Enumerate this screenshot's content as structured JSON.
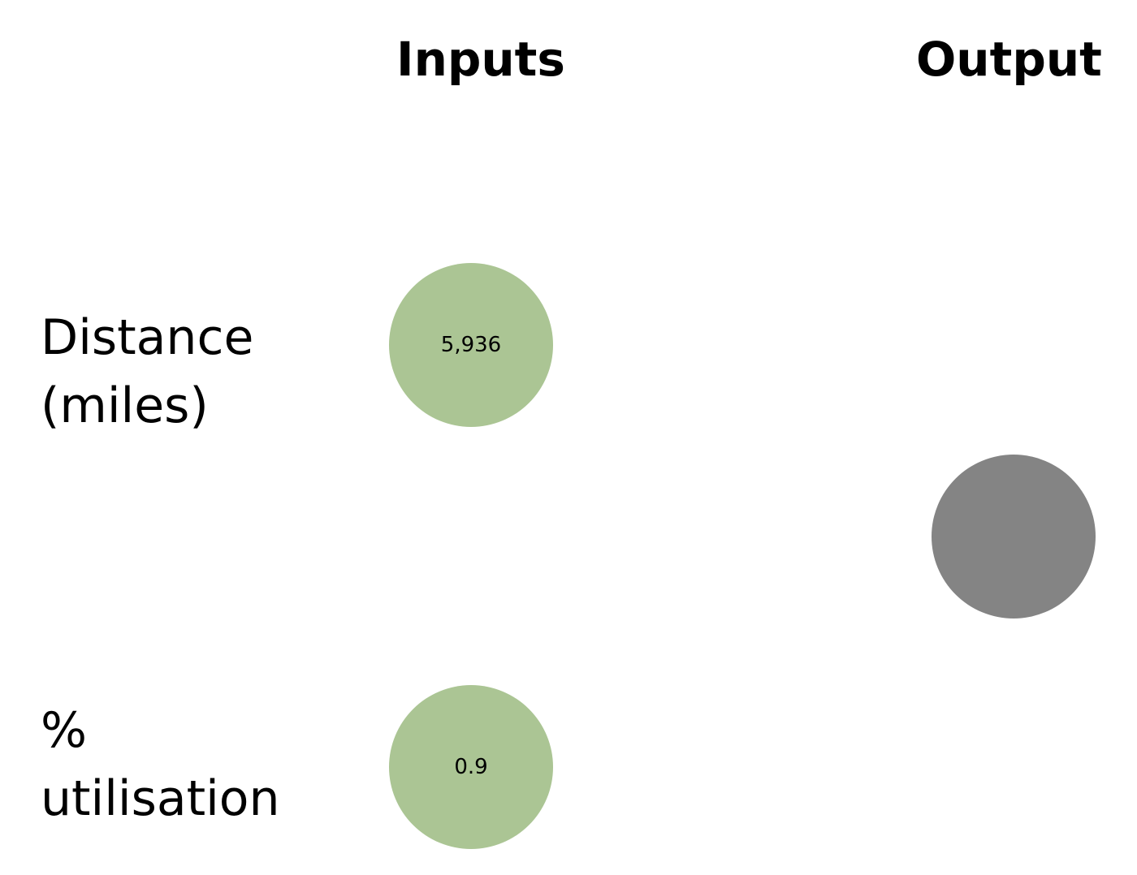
{
  "headings": {
    "inputs": "Inputs",
    "output": "Output"
  },
  "rows": {
    "distance": {
      "label_line1": "Distance",
      "label_line2": "(miles)",
      "value": "5,936"
    },
    "utilisation": {
      "label_line1": "%",
      "label_line2": "utilisation",
      "value": "0.9"
    }
  },
  "output_node": {
    "value": ""
  },
  "colors": {
    "input_node": "#abc594",
    "output_node": "#848484",
    "text": "#000000",
    "background": "#ffffff"
  }
}
